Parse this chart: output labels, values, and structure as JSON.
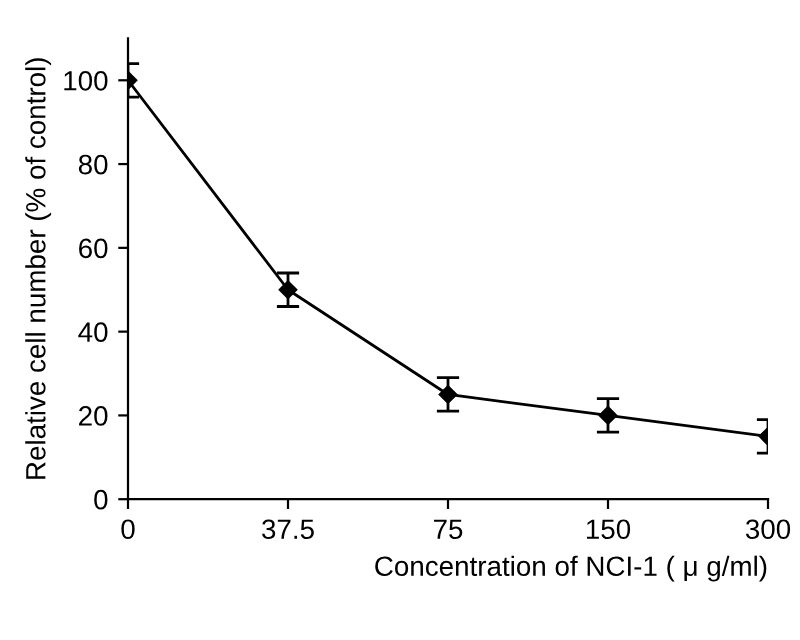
{
  "chart_data": {
    "type": "line",
    "xlabel": "Concentration of NCI-1 ( μ g/ml)",
    "ylabel": "Relative cell number (% of control)",
    "categories": [
      "0",
      "37.5",
      "75",
      "150",
      "300"
    ],
    "series": [
      {
        "color": "#000000",
        "values": [
          100,
          50,
          25,
          20,
          15
        ],
        "errors": [
          4,
          4,
          4,
          4,
          4
        ]
      }
    ],
    "ylim": [
      0,
      110
    ],
    "yticks": [
      0,
      20,
      40,
      60,
      80,
      100
    ],
    "grid": false,
    "legend": false,
    "marker": "diamond",
    "line_style": "solid"
  }
}
